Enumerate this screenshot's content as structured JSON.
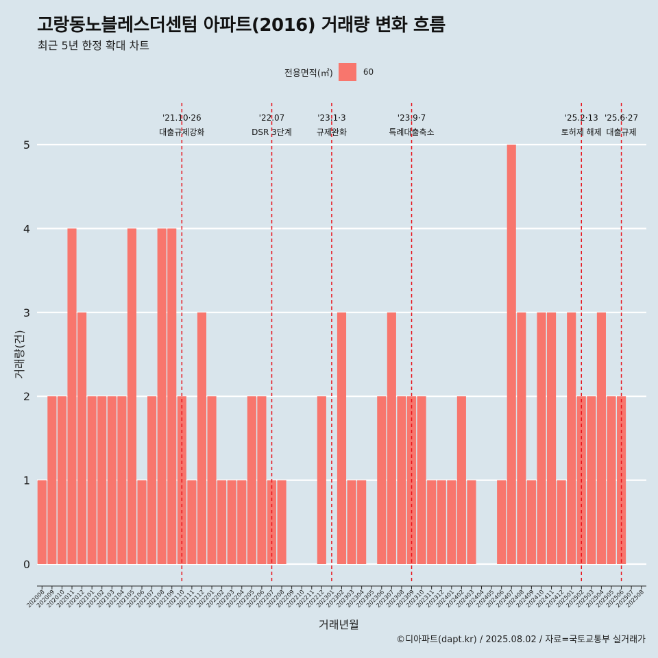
{
  "title": "고랑동노블레스더센텀 아파트(2016) 거래량 변화 흐름",
  "subtitle": "최근 5년 한정 확대 차트",
  "legend": {
    "title": "전용면적(㎡)",
    "label": "60",
    "color": "#F8766D"
  },
  "caption": "©디아파트(dapt.kr) / 2025.08.02 / 자료=국토교통부 실거래가",
  "chart_data": {
    "type": "bar",
    "xlabel": "거래년월",
    "ylabel": "거래량(건)",
    "ylim": [
      0,
      5
    ],
    "yticks": [
      0,
      1,
      2,
      3,
      4,
      5
    ],
    "legend_position": "top",
    "bar_color": "#F8766D",
    "background": "#d9e5ec",
    "grid": "horizontal major, white",
    "categories": [
      "202008",
      "202009",
      "202010",
      "202011",
      "202012",
      "202101",
      "202102",
      "202103",
      "202104",
      "202105",
      "202106",
      "202107",
      "202108",
      "202109",
      "202110",
      "202111",
      "202112",
      "202201",
      "202202",
      "202203",
      "202204",
      "202205",
      "202206",
      "202207",
      "202208",
      "202209",
      "202210",
      "202211",
      "202212",
      "202301",
      "202302",
      "202303",
      "202304",
      "202305",
      "202306",
      "202307",
      "202308",
      "202309",
      "202310",
      "202311",
      "202312",
      "202401",
      "202402",
      "202403",
      "202404",
      "202405",
      "202406",
      "202407",
      "202408",
      "202409",
      "202410",
      "202411",
      "202412",
      "202501",
      "202502",
      "202503",
      "202504",
      "202505",
      "202506",
      "202507",
      "202508"
    ],
    "series": [
      {
        "values": [
          1,
          2,
          2,
          4,
          3,
          2,
          2,
          2,
          2,
          4,
          1,
          2,
          4,
          4,
          2,
          1,
          3,
          2,
          1,
          1,
          1,
          2,
          2,
          1,
          1,
          0,
          0,
          0,
          2,
          0,
          3,
          1,
          1,
          0,
          2,
          3,
          2,
          2,
          2,
          1,
          1,
          1,
          2,
          1,
          0,
          0,
          1,
          5,
          3,
          1,
          3,
          3,
          1,
          3,
          2,
          2,
          3,
          2,
          2,
          0,
          0
        ]
      }
    ],
    "annotations": [
      {
        "x": "202110",
        "date": "'21.10·26",
        "text": "대출규제강화"
      },
      {
        "x": "202207",
        "date": "'22.07",
        "text": "DSR 3단계"
      },
      {
        "x": "202301",
        "date": "'23.1·3",
        "text": "규제완화"
      },
      {
        "x": "202309",
        "date": "'23.9·7",
        "text": "특례대출축소"
      },
      {
        "x": "202502",
        "date": "'25.2·13",
        "text": "토허제 해제"
      },
      {
        "x": "202506",
        "date": "'25.6·27",
        "text": "대출규제"
      }
    ]
  }
}
